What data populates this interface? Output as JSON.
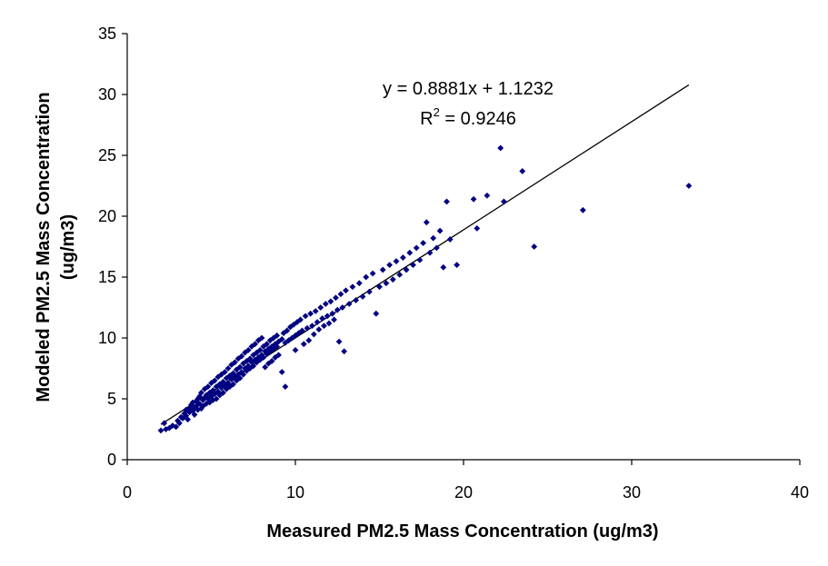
{
  "chart_data": {
    "type": "scatter",
    "title": "",
    "xlabel": "Measured PM2.5 Mass Concentration (ug/m3)",
    "ylabel_lines": [
      "Modeled PM2.5 Mass Concentration",
      "(ug/m3)"
    ],
    "xlim": [
      0,
      40
    ],
    "ylim": [
      0,
      35
    ],
    "xticks": [
      0,
      10,
      20,
      30,
      40
    ],
    "yticks": [
      0,
      5,
      10,
      15,
      20,
      25,
      30,
      35
    ],
    "grid": false,
    "legend": "none",
    "marker_color": "#000080",
    "trendline": {
      "slope": 0.8881,
      "intercept": 1.1232,
      "x_range": [
        2.0,
        33.4
      ],
      "color": "#000000",
      "equation_text": "y = 0.8881x + 1.1232",
      "r2_prefix": "R",
      "r2_sup": "2",
      "r2_suffix": " = 0.9246"
    },
    "points": [
      [
        2.0,
        2.4
      ],
      [
        2.2,
        3.0
      ],
      [
        2.3,
        2.5
      ],
      [
        2.5,
        2.6
      ],
      [
        2.7,
        2.8
      ],
      [
        2.9,
        2.7
      ],
      [
        3.0,
        3.2
      ],
      [
        3.1,
        3.0
      ],
      [
        3.2,
        3.5
      ],
      [
        3.3,
        3.4
      ],
      [
        3.4,
        3.8
      ],
      [
        3.5,
        3.6
      ],
      [
        3.5,
        4.1
      ],
      [
        3.6,
        3.3
      ],
      [
        3.7,
        4.2
      ],
      [
        3.7,
        3.9
      ],
      [
        3.8,
        4.5
      ],
      [
        3.9,
        4.0
      ],
      [
        3.9,
        4.7
      ],
      [
        4.0,
        4.3
      ],
      [
        4.0,
        3.7
      ],
      [
        4.1,
        4.8
      ],
      [
        4.1,
        4.4
      ],
      [
        4.2,
        5.0
      ],
      [
        4.2,
        4.1
      ],
      [
        4.3,
        4.6
      ],
      [
        4.3,
        5.2
      ],
      [
        4.4,
        4.2
      ],
      [
        4.4,
        5.5
      ],
      [
        4.5,
        4.9
      ],
      [
        4.5,
        4.4
      ],
      [
        4.6,
        5.1
      ],
      [
        4.6,
        5.8
      ],
      [
        4.7,
        4.6
      ],
      [
        4.7,
        5.3
      ],
      [
        4.8,
        5.0
      ],
      [
        4.8,
        6.0
      ],
      [
        4.9,
        4.7
      ],
      [
        4.9,
        5.5
      ],
      [
        5.0,
        5.2
      ],
      [
        5.0,
        6.3
      ],
      [
        5.1,
        4.9
      ],
      [
        5.1,
        5.7
      ],
      [
        5.2,
        5.4
      ],
      [
        5.2,
        6.5
      ],
      [
        5.3,
        5.0
      ],
      [
        5.3,
        6.0
      ],
      [
        5.4,
        5.6
      ],
      [
        5.4,
        6.8
      ],
      [
        5.5,
        5.3
      ],
      [
        5.5,
        6.2
      ],
      [
        5.6,
        5.9
      ],
      [
        5.6,
        7.0
      ],
      [
        5.7,
        5.5
      ],
      [
        5.7,
        6.4
      ],
      [
        5.8,
        6.1
      ],
      [
        5.8,
        7.2
      ],
      [
        5.9,
        5.8
      ],
      [
        5.9,
        6.7
      ],
      [
        6.0,
        6.3
      ],
      [
        6.0,
        7.5
      ],
      [
        6.1,
        6.0
      ],
      [
        6.1,
        6.9
      ],
      [
        6.2,
        6.6
      ],
      [
        6.2,
        7.8
      ],
      [
        6.3,
        6.2
      ],
      [
        6.3,
        7.1
      ],
      [
        6.4,
        6.8
      ],
      [
        6.4,
        8.0
      ],
      [
        6.5,
        6.5
      ],
      [
        6.5,
        7.4
      ],
      [
        6.6,
        7.0
      ],
      [
        6.6,
        8.3
      ],
      [
        6.7,
        6.7
      ],
      [
        6.7,
        7.6
      ],
      [
        6.8,
        7.2
      ],
      [
        6.8,
        8.5
      ],
      [
        6.9,
        7.0
      ],
      [
        6.9,
        7.9
      ],
      [
        7.0,
        7.5
      ],
      [
        7.0,
        8.8
      ],
      [
        7.1,
        7.3
      ],
      [
        7.1,
        8.1
      ],
      [
        7.2,
        7.7
      ],
      [
        7.2,
        9.0
      ],
      [
        7.3,
        7.5
      ],
      [
        7.3,
        8.3
      ],
      [
        7.4,
        8.0
      ],
      [
        7.4,
        9.3
      ],
      [
        7.5,
        7.7
      ],
      [
        7.5,
        8.6
      ],
      [
        7.6,
        8.2
      ],
      [
        7.6,
        9.5
      ],
      [
        7.7,
        8.0
      ],
      [
        7.7,
        8.8
      ],
      [
        7.8,
        8.4
      ],
      [
        7.8,
        9.8
      ],
      [
        7.9,
        8.2
      ],
      [
        7.9,
        9.0
      ],
      [
        8.0,
        8.6
      ],
      [
        8.0,
        10.0
      ],
      [
        8.1,
        8.4
      ],
      [
        8.1,
        9.3
      ],
      [
        8.2,
        8.9
      ],
      [
        8.2,
        7.6
      ],
      [
        8.3,
        8.7
      ],
      [
        8.3,
        9.5
      ],
      [
        8.4,
        9.1
      ],
      [
        8.4,
        7.9
      ],
      [
        8.5,
        8.9
      ],
      [
        8.5,
        9.8
      ],
      [
        8.6,
        9.3
      ],
      [
        8.6,
        8.1
      ],
      [
        8.7,
        9.1
      ],
      [
        8.7,
        10.0
      ],
      [
        8.8,
        9.5
      ],
      [
        8.8,
        8.4
      ],
      [
        8.9,
        9.3
      ],
      [
        8.9,
        10.2
      ],
      [
        9.0,
        9.7
      ],
      [
        9.0,
        8.6
      ],
      [
        9.2,
        9.9
      ],
      [
        9.2,
        7.2
      ],
      [
        9.3,
        10.4
      ],
      [
        9.4,
        9.6
      ],
      [
        9.4,
        6.0
      ],
      [
        9.5,
        10.6
      ],
      [
        9.6,
        9.8
      ],
      [
        9.7,
        10.9
      ],
      [
        9.8,
        10.0
      ],
      [
        9.9,
        11.1
      ],
      [
        10.0,
        10.2
      ],
      [
        10.0,
        9.0
      ],
      [
        10.1,
        11.3
      ],
      [
        10.2,
        10.4
      ],
      [
        10.3,
        11.5
      ],
      [
        10.4,
        10.6
      ],
      [
        10.5,
        9.5
      ],
      [
        10.6,
        11.8
      ],
      [
        10.7,
        10.8
      ],
      [
        10.8,
        9.8
      ],
      [
        10.9,
        12.0
      ],
      [
        11.0,
        11.0
      ],
      [
        11.1,
        10.3
      ],
      [
        11.2,
        12.2
      ],
      [
        11.3,
        11.3
      ],
      [
        11.4,
        10.7
      ],
      [
        11.5,
        12.5
      ],
      [
        11.6,
        11.6
      ],
      [
        11.7,
        11.0
      ],
      [
        11.8,
        12.8
      ],
      [
        11.9,
        11.8
      ],
      [
        12.0,
        11.2
      ],
      [
        12.1,
        13.0
      ],
      [
        12.2,
        12.0
      ],
      [
        12.3,
        11.5
      ],
      [
        12.4,
        13.3
      ],
      [
        12.5,
        12.3
      ],
      [
        12.6,
        9.7
      ],
      [
        12.7,
        13.6
      ],
      [
        12.8,
        12.5
      ],
      [
        12.9,
        8.9
      ],
      [
        13.0,
        13.9
      ],
      [
        13.2,
        12.8
      ],
      [
        13.4,
        14.2
      ],
      [
        13.6,
        13.1
      ],
      [
        13.8,
        14.5
      ],
      [
        14.0,
        13.4
      ],
      [
        14.2,
        15.0
      ],
      [
        14.4,
        13.8
      ],
      [
        14.6,
        15.3
      ],
      [
        14.8,
        12.0
      ],
      [
        15.0,
        14.2
      ],
      [
        15.2,
        15.6
      ],
      [
        15.4,
        14.5
      ],
      [
        15.6,
        16.0
      ],
      [
        15.8,
        14.8
      ],
      [
        16.0,
        16.3
      ],
      [
        16.2,
        15.2
      ],
      [
        16.4,
        16.6
      ],
      [
        16.6,
        15.6
      ],
      [
        16.8,
        17.0
      ],
      [
        17.0,
        16.0
      ],
      [
        17.2,
        17.4
      ],
      [
        17.4,
        16.4
      ],
      [
        17.6,
        17.8
      ],
      [
        17.8,
        19.5
      ],
      [
        18.0,
        17.0
      ],
      [
        18.2,
        18.2
      ],
      [
        18.4,
        17.4
      ],
      [
        18.6,
        18.8
      ],
      [
        18.8,
        15.8
      ],
      [
        19.0,
        21.2
      ],
      [
        19.2,
        18.1
      ],
      [
        19.6,
        16.0
      ],
      [
        20.6,
        21.4
      ],
      [
        20.8,
        19.0
      ],
      [
        21.4,
        21.7
      ],
      [
        22.2,
        25.6
      ],
      [
        22.4,
        21.2
      ],
      [
        23.5,
        23.7
      ],
      [
        24.2,
        17.5
      ],
      [
        27.1,
        20.5
      ],
      [
        33.4,
        22.5
      ]
    ]
  }
}
